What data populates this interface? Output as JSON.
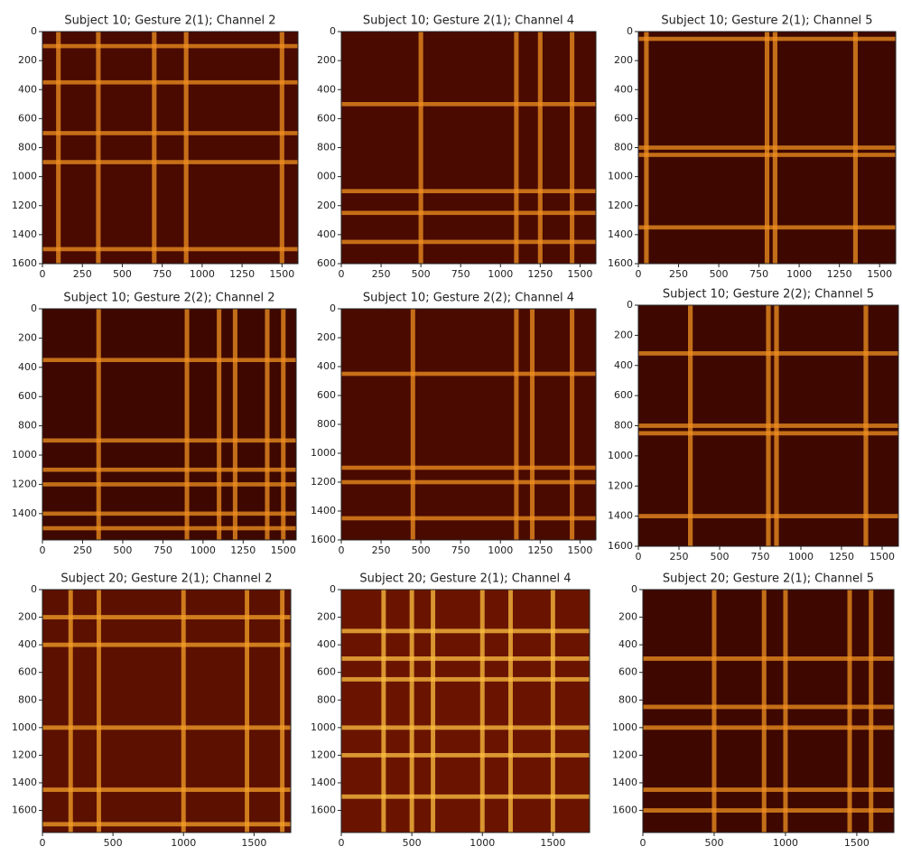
{
  "chart_data": [
    {
      "type": "heatmap",
      "title": "Subject 10; Gesture 2(1); Channel 2",
      "xlim": [
        0,
        1600
      ],
      "ylim": [
        0,
        1600
      ],
      "xticks": [
        0,
        250,
        500,
        750,
        1000,
        1250,
        1500
      ],
      "yticks": [
        0,
        200,
        400,
        600,
        800,
        1000,
        1200,
        1400,
        1600
      ],
      "bright_bands": [
        100,
        350,
        700,
        900,
        1500
      ],
      "background_color": "#4a0a00",
      "band_color": "#f09020"
    },
    {
      "type": "heatmap",
      "title": "Subject 10; Gesture 2(1); Channel 4",
      "xlim": [
        0,
        1600
      ],
      "ylim": [
        0,
        1600
      ],
      "xticks": [
        0,
        250,
        500,
        750,
        1000,
        1250,
        1500
      ],
      "yticks": [
        0,
        200,
        400,
        600,
        800,
        {
          "value": 1000,
          "label": "000"
        },
        {
          "value": 1200,
          "label": "200"
        },
        {
          "value": 1400,
          "label": "400"
        },
        {
          "value": 1600,
          "label": "600"
        }
      ],
      "bright_bands": [
        500,
        1100,
        1250,
        1450
      ],
      "background_color": "#4a0a00",
      "band_color": "#f09020"
    },
    {
      "type": "heatmap",
      "title": "Subject 10; Gesture 2(1); Channel 5",
      "xlim": [
        0,
        1600
      ],
      "ylim": [
        0,
        1600
      ],
      "xticks": [
        0,
        250,
        500,
        750,
        1000,
        1250,
        1500
      ],
      "yticks": [
        0,
        200,
        400,
        600,
        800,
        1000,
        1200,
        1400,
        1600
      ],
      "bright_bands": [
        50,
        800,
        850,
        1350
      ],
      "background_color": "#3e0800",
      "band_color": "#f09020"
    },
    {
      "type": "heatmap",
      "title": "Subject 10; Gesture 2(2); Channel 2",
      "xlim": [
        0,
        1580
      ],
      "ylim": [
        0,
        1580
      ],
      "xticks": [
        0,
        250,
        500,
        750,
        1000,
        1250,
        1500
      ],
      "yticks": [
        0,
        200,
        400,
        600,
        800,
        1000,
        1200,
        1400
      ],
      "bright_bands": [
        350,
        900,
        1100,
        1200,
        1400,
        1500
      ],
      "background_color": "#3e0800",
      "band_color": "#f09020"
    },
    {
      "type": "heatmap",
      "title": "Subject 10; Gesture 2(2); Channel 4",
      "xlim": [
        0,
        1600
      ],
      "ylim": [
        0,
        1600
      ],
      "xticks": [
        0,
        250,
        500,
        750,
        1000,
        1250,
        1500
      ],
      "yticks": [
        0,
        200,
        400,
        600,
        800,
        1000,
        1200,
        1400,
        1600
      ],
      "bright_bands": [
        450,
        1100,
        1200,
        1450
      ],
      "background_color": "#4a0a00",
      "band_color": "#f09020"
    },
    {
      "type": "heatmap",
      "title": "Subject 10; Gesture 2(2); Channel 5",
      "xlim": [
        0,
        1600
      ],
      "ylim": [
        0,
        1600
      ],
      "xticks": [
        0,
        250,
        500,
        750,
        1000,
        1250,
        1500
      ],
      "yticks": [
        0,
        200,
        400,
        600,
        800,
        1000,
        1200,
        1400,
        1600
      ],
      "bright_bands": [
        320,
        800,
        850,
        1400
      ],
      "background_color": "#3e0800",
      "band_color": "#f09020"
    },
    {
      "type": "heatmap",
      "title": "Subject 20; Gesture 2(1); Channel 2",
      "xlim": [
        0,
        1760
      ],
      "ylim": [
        0,
        1760
      ],
      "xticks": [
        0,
        500,
        1000,
        1500
      ],
      "yticks": [
        0,
        200,
        400,
        600,
        800,
        1000,
        1200,
        1400,
        1600
      ],
      "bright_bands": [
        200,
        400,
        1000,
        1450,
        1700
      ],
      "background_color": "#5c1000",
      "band_color": "#f5a028"
    },
    {
      "type": "heatmap",
      "title": "Subject 20; Gesture 2(1); Channel 4",
      "xlim": [
        0,
        1760
      ],
      "ylim": [
        0,
        1760
      ],
      "xticks": [
        0,
        500,
        1000,
        1500
      ],
      "yticks": [
        0,
        200,
        400,
        600,
        800,
        1000,
        1200,
        1400,
        1600
      ],
      "bright_bands": [
        300,
        500,
        650,
        1000,
        1200,
        1500
      ],
      "background_color": "#6a1400",
      "band_color": "#ffc040"
    },
    {
      "type": "heatmap",
      "title": "Subject 20; Gesture 2(1); Channel 5",
      "xlim": [
        0,
        1760
      ],
      "ylim": [
        0,
        1760
      ],
      "xticks": [
        0,
        500,
        1000,
        1500
      ],
      "yticks": [
        0,
        200,
        400,
        600,
        800,
        1000,
        1200,
        1400,
        1600
      ],
      "bright_bands": [
        500,
        850,
        1000,
        1450,
        1600
      ],
      "background_color": "#3e0800",
      "band_color": "#f09020"
    }
  ]
}
